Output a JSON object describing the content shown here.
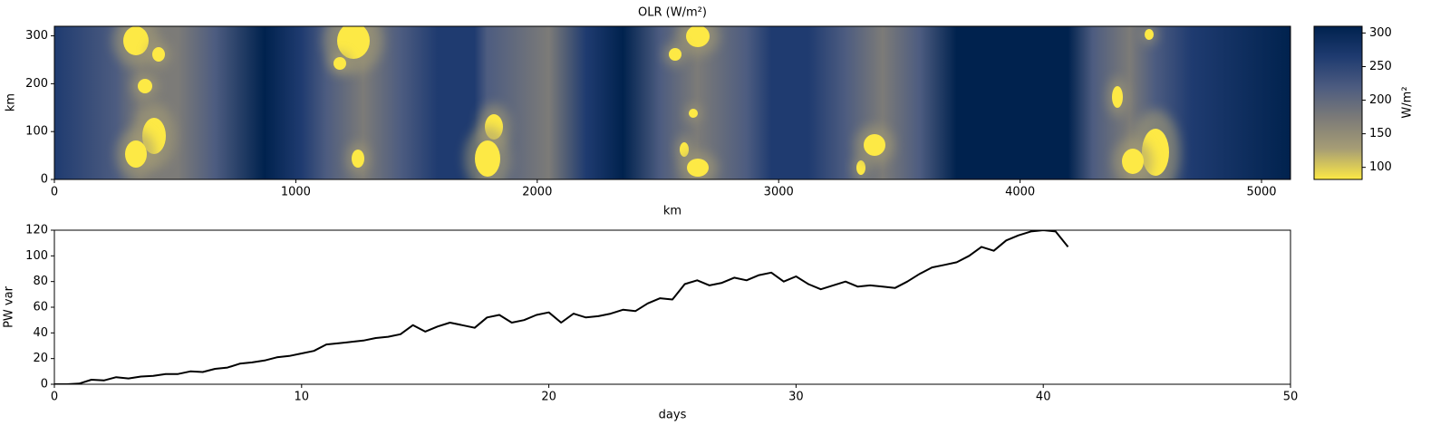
{
  "chart_data": [
    {
      "type": "heatmap",
      "title": "OLR (W/m²)",
      "xlabel": "km",
      "ylabel": "km",
      "xlim": [
        0,
        5120
      ],
      "ylim": [
        0,
        320
      ],
      "xticks": [
        0,
        1000,
        2000,
        3000,
        4000,
        5000
      ],
      "yticks": [
        0,
        100,
        200,
        300
      ],
      "colormap": [
        "#fde945",
        "#a69d75",
        "#7c7b78",
        "#4d5c80",
        "#1f3b70",
        "#00224e"
      ],
      "colorbar": {
        "label": "W/m²",
        "lim": [
          82,
          310
        ],
        "ticks": [
          100,
          150,
          200,
          250,
          300
        ]
      }
    },
    {
      "type": "line",
      "xlabel": "days",
      "ylabel": "PW var",
      "xlim": [
        0,
        50
      ],
      "ylim": [
        0,
        120
      ],
      "xticks": [
        0,
        10,
        20,
        30,
        40,
        50
      ],
      "yticks": [
        0,
        20,
        40,
        60,
        80,
        100,
        120
      ],
      "color": "#000000",
      "x": [
        0,
        0.5,
        1,
        1.5,
        2,
        2.5,
        3,
        3.5,
        4,
        4.5,
        5,
        5.5,
        6,
        6.5,
        7,
        7.5,
        8,
        8.5,
        9,
        9.5,
        10,
        10.5,
        11,
        11.5,
        12,
        12.5,
        13,
        13.5,
        14,
        14.5,
        15,
        15.5,
        16,
        16.5,
        17,
        17.5,
        18,
        18.5,
        19,
        19.5,
        20,
        20.5,
        21,
        21.5,
        22,
        22.5,
        23,
        23.5,
        24,
        24.5,
        25,
        25.5,
        26,
        26.5,
        27,
        27.5,
        28,
        28.5,
        29,
        29.5,
        30,
        30.5,
        31,
        31.5,
        32,
        32.5,
        33,
        33.5,
        34,
        34.5,
        35,
        35.5,
        36,
        36.5,
        37,
        37.5,
        38,
        38.5,
        39,
        39.5,
        40,
        40.5,
        41
      ],
      "values": [
        0,
        0,
        0.5,
        3.5,
        3,
        5.5,
        4.5,
        6,
        6.5,
        8,
        8,
        10,
        9.5,
        12,
        13,
        16,
        17,
        18.5,
        21,
        22,
        24,
        26,
        31,
        32,
        33,
        34,
        36,
        37,
        39,
        46,
        41,
        45,
        48,
        46,
        44,
        52,
        54,
        48,
        50,
        54,
        56,
        48,
        55,
        52,
        53,
        55,
        58,
        57,
        63,
        67,
        66,
        78,
        81,
        77,
        79,
        83,
        81,
        85,
        87,
        80,
        84,
        78,
        74,
        77,
        80,
        76,
        77,
        76,
        75,
        80,
        86,
        91,
        93,
        95,
        100,
        107,
        104,
        112,
        116,
        119,
        120,
        119,
        107
      ]
    }
  ]
}
